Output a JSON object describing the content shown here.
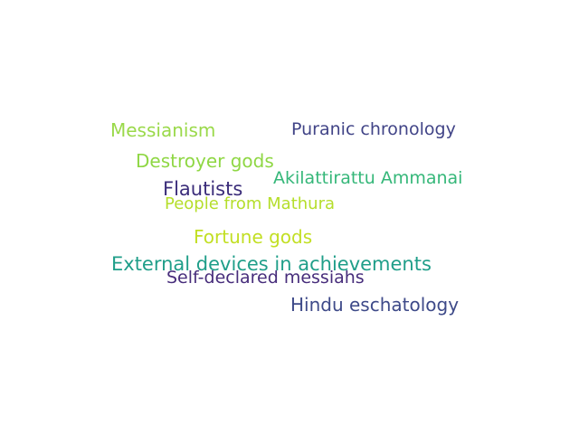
{
  "words": [
    {
      "text": "Messianism",
      "color": "#9ad94a"
    },
    {
      "text": "Puranic chronology",
      "color": "#414487"
    },
    {
      "text": "Destroyer gods",
      "color": "#8fd744"
    },
    {
      "text": "Akilattirattu Ammanai",
      "color": "#35b779"
    },
    {
      "text": "Flautists",
      "color": "#3b2d7a"
    },
    {
      "text": "People from Mathura",
      "color": "#b5de2b"
    },
    {
      "text": "Fortune gods",
      "color": "#c2df23"
    },
    {
      "text": "External devices in achievements",
      "color": "#1f9e89"
    },
    {
      "text": "Self-declared messiahs",
      "color": "#472d7b"
    },
    {
      "text": "Hindu eschatology",
      "color": "#3e4a89"
    }
  ]
}
